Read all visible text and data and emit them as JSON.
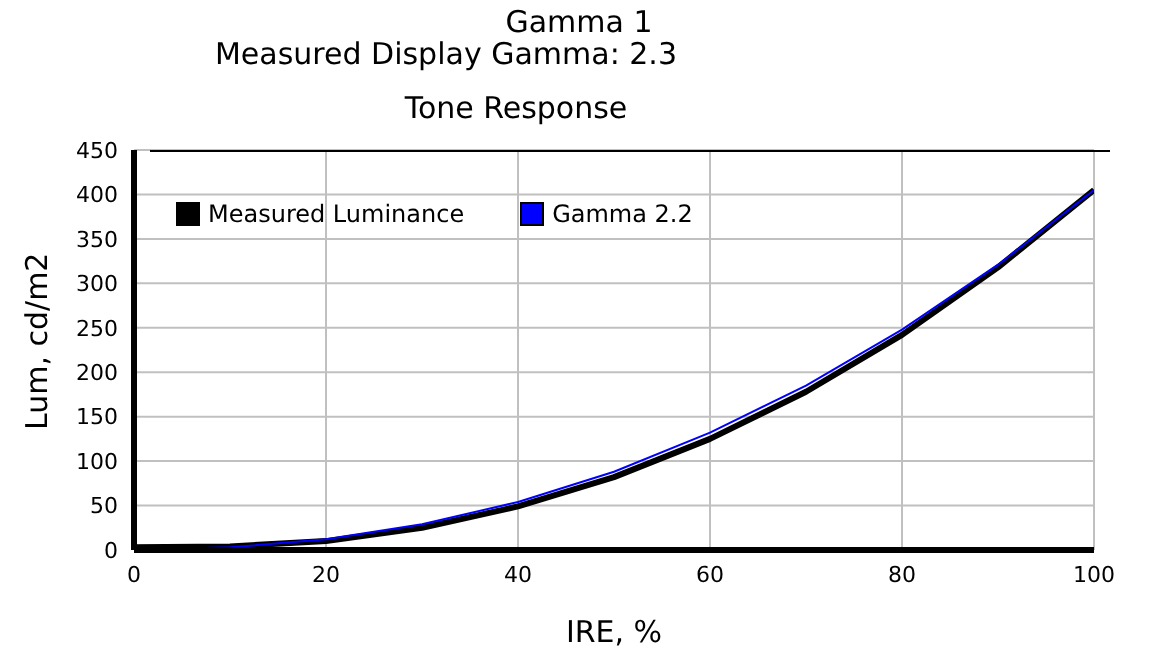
{
  "chart_data": {
    "type": "line",
    "title": "Gamma 1",
    "subtitle": "Measured Display Gamma: 2.3",
    "annotations": [
      "Tone Response"
    ],
    "xlabel": "IRE, %",
    "ylabel": "Lum, cd/m2",
    "x": [
      0,
      10,
      20,
      30,
      40,
      50,
      60,
      70,
      80,
      90,
      100
    ],
    "series": [
      {
        "name": "Measured Luminance",
        "color": "#000000",
        "values": [
          3,
          4,
          10,
          25,
          49,
          82,
          125,
          178,
          242,
          318,
          405
        ]
      },
      {
        "name": "Gamma 2.2",
        "color": "#0000ff",
        "values": [
          0,
          3,
          12,
          29,
          54,
          88,
          132,
          185,
          248,
          321,
          405
        ]
      }
    ],
    "xlim": [
      0,
      100
    ],
    "xticks": [
      0,
      20,
      40,
      60,
      80,
      100
    ],
    "ylim": [
      0,
      450
    ],
    "yticks": [
      0,
      50,
      100,
      150,
      200,
      250,
      300,
      350,
      400,
      450
    ],
    "grid": true,
    "legend": "top left",
    "marker": "none",
    "line_style": "solid"
  }
}
